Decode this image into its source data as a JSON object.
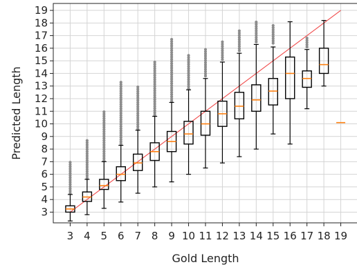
{
  "chart_data": {
    "type": "box",
    "xlabel": "Gold Length",
    "ylabel": "Predicted Length",
    "xlim": [
      2.0,
      20.0
    ],
    "ylim": [
      2.15,
      19.55
    ],
    "x_ticks": [
      3,
      4,
      5,
      6,
      7,
      8,
      9,
      10,
      11,
      12,
      13,
      14,
      15,
      16,
      17,
      18,
      19
    ],
    "y_ticks": [
      3,
      4,
      5,
      6,
      7,
      8,
      9,
      10,
      11,
      12,
      13,
      14,
      15,
      16,
      17,
      18,
      19
    ],
    "grid": true,
    "reference_line": {
      "from": [
        3,
        3
      ],
      "to": [
        19,
        19
      ],
      "color": "#f04a4a"
    },
    "colors": {
      "box": "#000000",
      "median": "#ff7f0e",
      "flier": "#8c8c8c"
    },
    "boxes": [
      {
        "x": 3,
        "whislo": 2.3,
        "q1": 3.0,
        "med": 3.25,
        "q3": 3.5,
        "whishi": 4.4,
        "fliers": {
          "from": 4.5,
          "to": 7.0
        }
      },
      {
        "x": 4,
        "whislo": 2.8,
        "q1": 3.85,
        "med": 4.2,
        "q3": 4.6,
        "whishi": 5.6,
        "fliers": {
          "from": 5.7,
          "to": 8.8
        }
      },
      {
        "x": 5,
        "whislo": 3.3,
        "q1": 4.8,
        "med": 5.1,
        "q3": 5.6,
        "whishi": 7.0,
        "fliers": {
          "from": 7.1,
          "to": 11.1
        }
      },
      {
        "x": 6,
        "whislo": 3.8,
        "q1": 5.5,
        "med": 6.0,
        "q3": 6.6,
        "whishi": 8.3,
        "fliers": {
          "from": 8.4,
          "to": 13.4
        }
      },
      {
        "x": 7,
        "whislo": 4.5,
        "q1": 6.3,
        "med": 6.9,
        "q3": 7.6,
        "whishi": 9.5,
        "fliers": {
          "from": 9.6,
          "to": 13.0
        }
      },
      {
        "x": 8,
        "whislo": 5.0,
        "q1": 7.1,
        "med": 7.8,
        "q3": 8.5,
        "whishi": 10.6,
        "fliers": {
          "from": 10.7,
          "to": 15.0
        }
      },
      {
        "x": 9,
        "whislo": 5.4,
        "q1": 7.8,
        "med": 8.6,
        "q3": 9.4,
        "whishi": 11.7,
        "fliers": {
          "from": 11.8,
          "to": 16.7
        }
      },
      {
        "x": 10,
        "whislo": 6.0,
        "q1": 8.4,
        "med": 9.2,
        "q3": 10.2,
        "whishi": 12.7,
        "fliers": {
          "from": 12.8,
          "to": 15.5
        }
      },
      {
        "x": 11,
        "whislo": 6.5,
        "q1": 9.1,
        "med": 10.0,
        "q3": 11.0,
        "whishi": 13.6,
        "fliers": {
          "from": 13.8,
          "to": 16.0
        }
      },
      {
        "x": 12,
        "whislo": 6.9,
        "q1": 9.8,
        "med": 10.8,
        "q3": 11.8,
        "whishi": 14.9,
        "fliers": {
          "from": 15.1,
          "to": 16.5
        }
      },
      {
        "x": 13,
        "whislo": 7.4,
        "q1": 10.4,
        "med": 11.4,
        "q3": 12.5,
        "whishi": 15.6,
        "fliers": {
          "from": 15.8,
          "to": 17.5
        }
      },
      {
        "x": 14,
        "whislo": 8.0,
        "q1": 11.0,
        "med": 11.9,
        "q3": 13.1,
        "whishi": 16.3,
        "fliers": {
          "from": 16.5,
          "to": 18.2
        }
      },
      {
        "x": 15,
        "whislo": 9.2,
        "q1": 11.5,
        "med": 12.6,
        "q3": 13.6,
        "whishi": 16.1,
        "fliers": {
          "from": 16.4,
          "to": 17.8
        }
      },
      {
        "x": 16,
        "whislo": 8.4,
        "q1": 12.0,
        "med": 14.0,
        "q3": 15.3,
        "whishi": 18.1,
        "fliers": null
      },
      {
        "x": 17,
        "whislo": 11.2,
        "q1": 12.9,
        "med": 13.6,
        "q3": 14.2,
        "whishi": 15.9,
        "fliers": {
          "from": 16.1,
          "to": 16.9
        }
      },
      {
        "x": 18,
        "whislo": 13.0,
        "q1": 14.0,
        "med": 14.7,
        "q3": 16.0,
        "whishi": 18.2,
        "fliers": null
      },
      {
        "x": 19,
        "whislo": 10.1,
        "q1": 10.1,
        "med": 10.1,
        "q3": 10.1,
        "whishi": 10.1,
        "fliers": null
      }
    ]
  }
}
